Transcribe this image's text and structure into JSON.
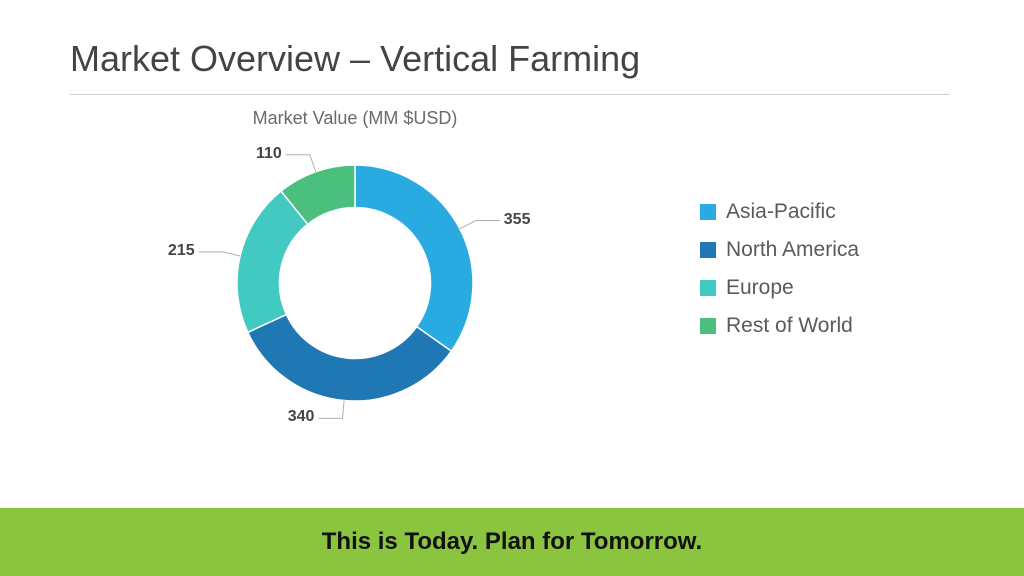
{
  "title": "Market Overview – Vertical Farming",
  "chart": {
    "type": "donut",
    "subtitle": "Market Value (MM $USD)",
    "inner_radius_ratio": 0.64,
    "background_color": "#ffffff",
    "series": [
      {
        "label": "Asia-Pacific",
        "value": 355,
        "color": "#29abe2"
      },
      {
        "label": "North America",
        "value": 340,
        "color": "#1f78b4"
      },
      {
        "label": "Europe",
        "value": 215,
        "color": "#41c9c2"
      },
      {
        "label": "Rest of World",
        "value": 110,
        "color": "#4bbf7d"
      }
    ],
    "label_font_size": 16,
    "label_font_weight": 600,
    "label_color": "#454545",
    "leader_color": "#b0b0b0"
  },
  "legend": {
    "font_size": 21,
    "text_color": "#5a5a5a",
    "swatch_size": 16
  },
  "footer": {
    "text": "This is Today. Plan for Tomorrow.",
    "bar_color": "#8bc53f",
    "text_color": "#111111",
    "font_size": 24
  },
  "typography": {
    "title_font_size": 36,
    "title_font_weight": 300,
    "title_color": "#444444",
    "subtitle_color": "#6a6a6a",
    "rule_color": "#d0d0d0"
  }
}
